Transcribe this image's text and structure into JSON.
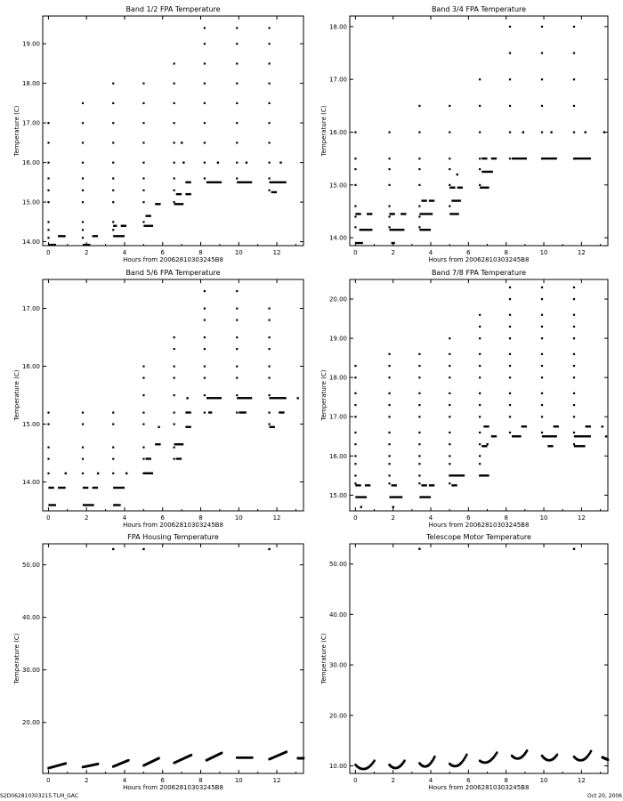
{
  "footer": {
    "left": "S2D062810303215.TLM_GAC",
    "right": "Oct 20, 2006"
  },
  "chart_data": [
    {
      "type": "scatter",
      "title": "Band 1/2 FPA Temperature",
      "xlabel": "Hours from 20062810303245B8",
      "ylabel": "Temperature (C)",
      "xlim": [
        -0.3,
        13.4
      ],
      "ylim": [
        13.9,
        19.7
      ],
      "xticks": [
        0,
        2,
        4,
        6,
        8,
        10,
        12
      ],
      "yticks": [
        14,
        15,
        16,
        17,
        18,
        19
      ],
      "yticklabels": [
        "14.00",
        "15.00",
        "16.00",
        "17.00",
        "18.00",
        "19.00"
      ],
      "levels": [
        14.1,
        14.3,
        14.5,
        15.0,
        15.3,
        15.6,
        16.0,
        16.5,
        17.0,
        17.5,
        18.0,
        18.5,
        19.0,
        19.4
      ],
      "segments": [
        {
          "x0": 0.0,
          "x1": 0.4,
          "y": 13.92
        },
        {
          "x0": 0.5,
          "x1": 0.9,
          "y": 14.14
        },
        {
          "x0": 1.8,
          "x1": 2.2,
          "y": 13.92
        },
        {
          "x0": 2.3,
          "x1": 2.6,
          "y": 14.14
        },
        {
          "x0": 3.4,
          "x1": 4.0,
          "y": 14.14
        },
        {
          "x0": 3.4,
          "x1": 3.6,
          "y": 14.4
        },
        {
          "x0": 3.8,
          "x1": 4.1,
          "y": 14.4
        },
        {
          "x0": 5.0,
          "x1": 5.5,
          "y": 14.4
        },
        {
          "x0": 5.1,
          "x1": 5.4,
          "y": 14.65
        },
        {
          "x0": 5.6,
          "x1": 5.9,
          "y": 14.95
        },
        {
          "x0": 6.6,
          "x1": 7.1,
          "y": 14.95
        },
        {
          "x0": 6.7,
          "x1": 7.0,
          "y": 15.2
        },
        {
          "x0": 7.2,
          "x1": 7.5,
          "y": 15.2
        },
        {
          "x0": 7.2,
          "x1": 7.5,
          "y": 15.5
        },
        {
          "x0": 8.3,
          "x1": 9.1,
          "y": 15.5
        },
        {
          "x0": 9.9,
          "x1": 10.7,
          "y": 15.5
        },
        {
          "x0": 11.6,
          "x1": 12.5,
          "y": 15.5
        },
        {
          "x0": 11.7,
          "x1": 12.0,
          "y": 15.25
        }
      ],
      "columns": [
        {
          "x": 0.0,
          "top": 17.3
        },
        {
          "x": 1.8,
          "top": 17.8
        },
        {
          "x": 3.4,
          "top": 18.1
        },
        {
          "x": 5.0,
          "top": 18.4
        },
        {
          "x": 6.6,
          "top": 18.9
        },
        {
          "x": 8.2,
          "top": 19.7
        },
        {
          "x": 9.9,
          "top": 19.5
        },
        {
          "x": 11.6,
          "top": 19.5
        },
        {
          "x": 13.2,
          "top": 19.5
        }
      ],
      "extra_points": [
        {
          "x": 7.0,
          "y": 16.5
        },
        {
          "x": 7.1,
          "y": 16.0
        },
        {
          "x": 8.9,
          "y": 16.0
        },
        {
          "x": 10.4,
          "y": 16.0
        },
        {
          "x": 12.2,
          "y": 16.0
        },
        {
          "x": 3.9,
          "y": 14.4
        }
      ]
    },
    {
      "type": "scatter",
      "title": "Band 3/4 FPA Temperature",
      "xlabel": "Hours from 20062810303245B8",
      "ylabel": "Temperature (C)",
      "xlim": [
        -0.3,
        13.4
      ],
      "ylim": [
        13.85,
        18.2
      ],
      "xticks": [
        0,
        2,
        4,
        6,
        8,
        10,
        12
      ],
      "yticks": [
        14,
        15,
        16,
        17,
        18
      ],
      "yticklabels": [
        "14.00",
        "15.00",
        "16.00",
        "17.00",
        "18.00"
      ],
      "levels": [
        14.2,
        14.4,
        14.6,
        15.0,
        15.3,
        15.5,
        16.0,
        16.5,
        17.0,
        17.5,
        18.0
      ],
      "segments": [
        {
          "x0": 0.0,
          "x1": 0.4,
          "y": 13.9
        },
        {
          "x0": 0.2,
          "x1": 0.9,
          "y": 14.15
        },
        {
          "x0": 0.0,
          "x1": 0.3,
          "y": 14.45
        },
        {
          "x0": 0.6,
          "x1": 0.9,
          "y": 14.45
        },
        {
          "x0": 1.8,
          "x1": 2.6,
          "y": 14.15
        },
        {
          "x0": 1.9,
          "x1": 2.1,
          "y": 13.9
        },
        {
          "x0": 1.8,
          "x1": 2.1,
          "y": 14.45
        },
        {
          "x0": 2.4,
          "x1": 2.7,
          "y": 14.45
        },
        {
          "x0": 3.4,
          "x1": 4.0,
          "y": 14.15
        },
        {
          "x0": 3.4,
          "x1": 4.1,
          "y": 14.45
        },
        {
          "x0": 3.5,
          "x1": 3.8,
          "y": 14.7
        },
        {
          "x0": 3.9,
          "x1": 4.2,
          "y": 14.7
        },
        {
          "x0": 5.0,
          "x1": 5.5,
          "y": 14.45
        },
        {
          "x0": 5.1,
          "x1": 5.6,
          "y": 14.7
        },
        {
          "x0": 5.0,
          "x1": 5.3,
          "y": 14.95
        },
        {
          "x0": 5.4,
          "x1": 5.7,
          "y": 14.95
        },
        {
          "x0": 6.6,
          "x1": 7.1,
          "y": 14.95
        },
        {
          "x0": 6.7,
          "x1": 7.3,
          "y": 15.25
        },
        {
          "x0": 6.7,
          "x1": 7.0,
          "y": 15.5
        },
        {
          "x0": 7.2,
          "x1": 7.5,
          "y": 15.5
        },
        {
          "x0": 8.3,
          "x1": 9.1,
          "y": 15.5
        },
        {
          "x0": 9.9,
          "x1": 10.7,
          "y": 15.5
        },
        {
          "x0": 11.6,
          "x1": 12.5,
          "y": 15.5
        }
      ],
      "columns": [
        {
          "x": 0.0,
          "top": 16.3
        },
        {
          "x": 1.8,
          "top": 16.3
        },
        {
          "x": 3.4,
          "top": 16.6
        },
        {
          "x": 5.0,
          "top": 16.9
        },
        {
          "x": 6.6,
          "top": 17.4
        },
        {
          "x": 8.2,
          "top": 18.2
        },
        {
          "x": 9.9,
          "top": 18.2
        },
        {
          "x": 11.6,
          "top": 18.0
        },
        {
          "x": 13.2,
          "top": 17.9
        }
      ],
      "extra_points": [
        {
          "x": 8.9,
          "y": 16.0
        },
        {
          "x": 10.4,
          "y": 16.0
        },
        {
          "x": 12.2,
          "y": 16.0
        },
        {
          "x": 13.2,
          "y": 16.0
        },
        {
          "x": 5.4,
          "y": 15.2
        }
      ]
    },
    {
      "type": "scatter",
      "title": "Band 5/6 FPA Temperature",
      "xlabel": "Hours from 20062810303245B8",
      "ylabel": "Temperature (C)",
      "xlim": [
        -0.3,
        13.4
      ],
      "ylim": [
        13.5,
        17.5
      ],
      "xticks": [
        0,
        2,
        4,
        6,
        8,
        10,
        12
      ],
      "yticks": [
        14,
        15,
        16,
        17
      ],
      "yticklabels": [
        "14.00",
        "15.00",
        "16.00",
        "17.00"
      ],
      "levels": [
        14.15,
        14.4,
        14.6,
        15.0,
        15.2,
        15.5,
        15.8,
        16.0,
        16.3,
        16.5,
        16.8,
        17.0,
        17.3
      ],
      "segments": [
        {
          "x0": 0.0,
          "x1": 0.4,
          "y": 13.6
        },
        {
          "x0": 0.0,
          "x1": 0.3,
          "y": 13.9
        },
        {
          "x0": 0.5,
          "x1": 0.9,
          "y": 13.9
        },
        {
          "x0": 1.8,
          "x1": 2.4,
          "y": 13.6
        },
        {
          "x0": 1.8,
          "x1": 2.1,
          "y": 13.9
        },
        {
          "x0": 2.3,
          "x1": 2.6,
          "y": 13.9
        },
        {
          "x0": 3.4,
          "x1": 3.8,
          "y": 13.6
        },
        {
          "x0": 3.4,
          "x1": 4.0,
          "y": 13.9
        },
        {
          "x0": 5.0,
          "x1": 5.5,
          "y": 14.15
        },
        {
          "x0": 5.1,
          "x1": 5.4,
          "y": 14.4
        },
        {
          "x0": 5.6,
          "x1": 5.9,
          "y": 14.65
        },
        {
          "x0": 6.6,
          "x1": 7.1,
          "y": 14.65
        },
        {
          "x0": 6.7,
          "x1": 7.0,
          "y": 14.4
        },
        {
          "x0": 7.2,
          "x1": 7.5,
          "y": 14.95
        },
        {
          "x0": 7.2,
          "x1": 7.5,
          "y": 15.2
        },
        {
          "x0": 8.3,
          "x1": 9.1,
          "y": 15.45
        },
        {
          "x0": 8.4,
          "x1": 8.6,
          "y": 15.2
        },
        {
          "x0": 9.9,
          "x1": 10.7,
          "y": 15.45
        },
        {
          "x0": 10.0,
          "x1": 10.4,
          "y": 15.2
        },
        {
          "x0": 11.6,
          "x1": 12.5,
          "y": 15.45
        },
        {
          "x0": 11.6,
          "x1": 11.9,
          "y": 14.95
        },
        {
          "x0": 12.1,
          "x1": 12.4,
          "y": 15.2
        }
      ],
      "columns": [
        {
          "x": 0.0,
          "top": 15.45
        },
        {
          "x": 1.8,
          "top": 15.45
        },
        {
          "x": 3.4,
          "top": 15.45
        },
        {
          "x": 5.0,
          "top": 16.0
        },
        {
          "x": 6.6,
          "top": 16.55
        },
        {
          "x": 8.2,
          "top": 17.35
        },
        {
          "x": 9.9,
          "top": 17.35
        },
        {
          "x": 11.6,
          "top": 17.0
        },
        {
          "x": 13.2,
          "top": 17.35
        }
      ],
      "extra_points": [
        {
          "x": 0.9,
          "y": 14.15
        },
        {
          "x": 2.6,
          "y": 14.15
        },
        {
          "x": 4.1,
          "y": 14.15
        },
        {
          "x": 5.8,
          "y": 14.95
        },
        {
          "x": 7.3,
          "y": 15.45
        },
        {
          "x": 13.1,
          "y": 15.45
        }
      ]
    },
    {
      "type": "scatter",
      "title": "Band 7/8 FPA Temperature",
      "xlabel": "Hours from 20062810303245B8",
      "ylabel": "Temperature (C)",
      "xlim": [
        -0.3,
        13.4
      ],
      "ylim": [
        14.6,
        20.5
      ],
      "xticks": [
        0,
        2,
        4,
        6,
        8,
        10,
        12
      ],
      "yticks": [
        15,
        16,
        17,
        18,
        19,
        20
      ],
      "yticklabels": [
        "15.00",
        "16.00",
        "17.00",
        "18.00",
        "19.00",
        "20.00"
      ],
      "levels": [
        15.3,
        15.5,
        15.8,
        16.0,
        16.3,
        16.6,
        17.0,
        17.3,
        17.6,
        18.0,
        18.3,
        18.6,
        19.0,
        19.3,
        19.6,
        20.0,
        20.3
      ],
      "segments": [
        {
          "x0": 0.0,
          "x1": 0.6,
          "y": 14.95
        },
        {
          "x0": 0.0,
          "x1": 0.3,
          "y": 15.25
        },
        {
          "x0": 0.5,
          "x1": 0.8,
          "y": 15.25
        },
        {
          "x0": 1.8,
          "x1": 2.5,
          "y": 14.95
        },
        {
          "x0": 1.9,
          "x1": 2.2,
          "y": 15.25
        },
        {
          "x0": 3.4,
          "x1": 4.0,
          "y": 14.95
        },
        {
          "x0": 3.5,
          "x1": 3.8,
          "y": 15.25
        },
        {
          "x0": 3.9,
          "x1": 4.2,
          "y": 15.25
        },
        {
          "x0": 5.0,
          "x1": 5.8,
          "y": 15.5
        },
        {
          "x0": 5.1,
          "x1": 5.4,
          "y": 15.25
        },
        {
          "x0": 6.6,
          "x1": 7.1,
          "y": 15.5
        },
        {
          "x0": 6.7,
          "x1": 7.0,
          "y": 16.25
        },
        {
          "x0": 7.2,
          "x1": 7.5,
          "y": 16.5
        },
        {
          "x0": 6.8,
          "x1": 7.1,
          "y": 16.75
        },
        {
          "x0": 8.3,
          "x1": 8.8,
          "y": 16.5
        },
        {
          "x0": 8.8,
          "x1": 9.1,
          "y": 16.75
        },
        {
          "x0": 9.9,
          "x1": 10.7,
          "y": 16.5
        },
        {
          "x0": 10.2,
          "x1": 10.5,
          "y": 16.25
        },
        {
          "x0": 10.5,
          "x1": 10.8,
          "y": 16.75
        },
        {
          "x0": 11.6,
          "x1": 12.2,
          "y": 16.25
        },
        {
          "x0": 11.6,
          "x1": 12.5,
          "y": 16.5
        },
        {
          "x0": 12.2,
          "x1": 12.5,
          "y": 16.75
        }
      ],
      "columns": [
        {
          "x": 0.0,
          "top": 18.4
        },
        {
          "x": 1.8,
          "top": 18.9
        },
        {
          "x": 3.4,
          "top": 18.9
        },
        {
          "x": 5.0,
          "top": 19.2
        },
        {
          "x": 6.6,
          "top": 19.6
        },
        {
          "x": 8.2,
          "top": 20.4
        },
        {
          "x": 9.9,
          "top": 20.4
        },
        {
          "x": 11.6,
          "top": 20.4
        },
        {
          "x": 13.2,
          "top": 20.1
        }
      ],
      "extra_points": [
        {
          "x": 0.3,
          "y": 14.7
        },
        {
          "x": 2.0,
          "y": 14.7
        },
        {
          "x": 7.0,
          "y": 16.3
        },
        {
          "x": 13.1,
          "y": 16.75
        },
        {
          "x": 13.3,
          "y": 16.5
        }
      ]
    },
    {
      "type": "scatter",
      "title": "FPA Housing Temperature",
      "xlabel": "Hours from 20062810303245B8",
      "ylabel": "Temperature (C)",
      "xlim": [
        -0.3,
        13.4
      ],
      "ylim": [
        10.3,
        54.0
      ],
      "xticks": [
        0,
        2,
        4,
        6,
        8,
        10,
        12
      ],
      "yticks": [
        20,
        30,
        40,
        50
      ],
      "yticklabels": [
        "20.00",
        "30.00",
        "40.00",
        "50.00"
      ],
      "curves": [
        {
          "x0": 0.0,
          "x1": 0.9,
          "y0": 11.3,
          "y1": 12.2,
          "curv": 0.0
        },
        {
          "x0": 1.8,
          "x1": 2.6,
          "y0": 11.5,
          "y1": 12.1,
          "curv": 0.0
        },
        {
          "x0": 3.4,
          "x1": 4.2,
          "y0": 11.6,
          "y1": 12.8,
          "curv": 0.0
        },
        {
          "x0": 5.0,
          "x1": 5.8,
          "y0": 11.8,
          "y1": 13.2,
          "curv": 0.0
        },
        {
          "x0": 6.6,
          "x1": 7.5,
          "y0": 12.3,
          "y1": 13.8,
          "curv": 0.0
        },
        {
          "x0": 8.3,
          "x1": 9.1,
          "y0": 12.8,
          "y1": 14.2,
          "curv": 0.0
        },
        {
          "x0": 9.9,
          "x1": 10.7,
          "y0": 13.3,
          "y1": 13.3,
          "curv": 0.0
        },
        {
          "x0": 11.6,
          "x1": 12.5,
          "y0": 13.0,
          "y1": 14.4,
          "curv": 0.0
        },
        {
          "x0": 13.1,
          "x1": 13.4,
          "y0": 13.2,
          "y1": 13.2,
          "curv": 0.0
        }
      ],
      "extra_points": [
        {
          "x": 3.4,
          "y": 53.0
        },
        {
          "x": 5.0,
          "y": 53.0
        },
        {
          "x": 11.6,
          "y": 53.0
        }
      ]
    },
    {
      "type": "scatter",
      "title": "Telescope Motor Temperature",
      "xlabel": "Hours from 20062810303245B8",
      "ylabel": "Temperature (C)",
      "xlim": [
        -0.3,
        13.4
      ],
      "ylim": [
        8.5,
        54.0
      ],
      "xticks": [
        0,
        2,
        4,
        6,
        8,
        10,
        12
      ],
      "yticks": [
        10,
        20,
        30,
        40,
        50
      ],
      "yticklabels": [
        "10.00",
        "20.00",
        "30.00",
        "40.00",
        "50.00"
      ],
      "curves": [
        {
          "x0": 0.0,
          "x1": 1.0,
          "y0": 10.2,
          "y1": 11.0,
          "curv": 1.2
        },
        {
          "x0": 1.8,
          "x1": 2.6,
          "y0": 10.2,
          "y1": 11.0,
          "curv": 1.0
        },
        {
          "x0": 3.4,
          "x1": 4.2,
          "y0": 10.5,
          "y1": 11.8,
          "curv": 1.2
        },
        {
          "x0": 5.0,
          "x1": 5.9,
          "y0": 10.4,
          "y1": 12.2,
          "curv": 1.2
        },
        {
          "x0": 6.6,
          "x1": 7.5,
          "y0": 11.0,
          "y1": 12.6,
          "curv": 1.0
        },
        {
          "x0": 8.3,
          "x1": 9.1,
          "y0": 12.0,
          "y1": 13.0,
          "curv": 1.0
        },
        {
          "x0": 9.9,
          "x1": 10.7,
          "y0": 12.0,
          "y1": 12.2,
          "curv": 1.0
        },
        {
          "x0": 11.6,
          "x1": 12.5,
          "y0": 11.8,
          "y1": 12.9,
          "curv": 1.2
        },
        {
          "x0": 13.1,
          "x1": 13.4,
          "y0": 11.7,
          "y1": 11.2,
          "curv": 0.0
        }
      ],
      "extra_points": [
        {
          "x": 3.4,
          "y": 53.0
        },
        {
          "x": 11.6,
          "y": 53.0
        }
      ]
    }
  ]
}
